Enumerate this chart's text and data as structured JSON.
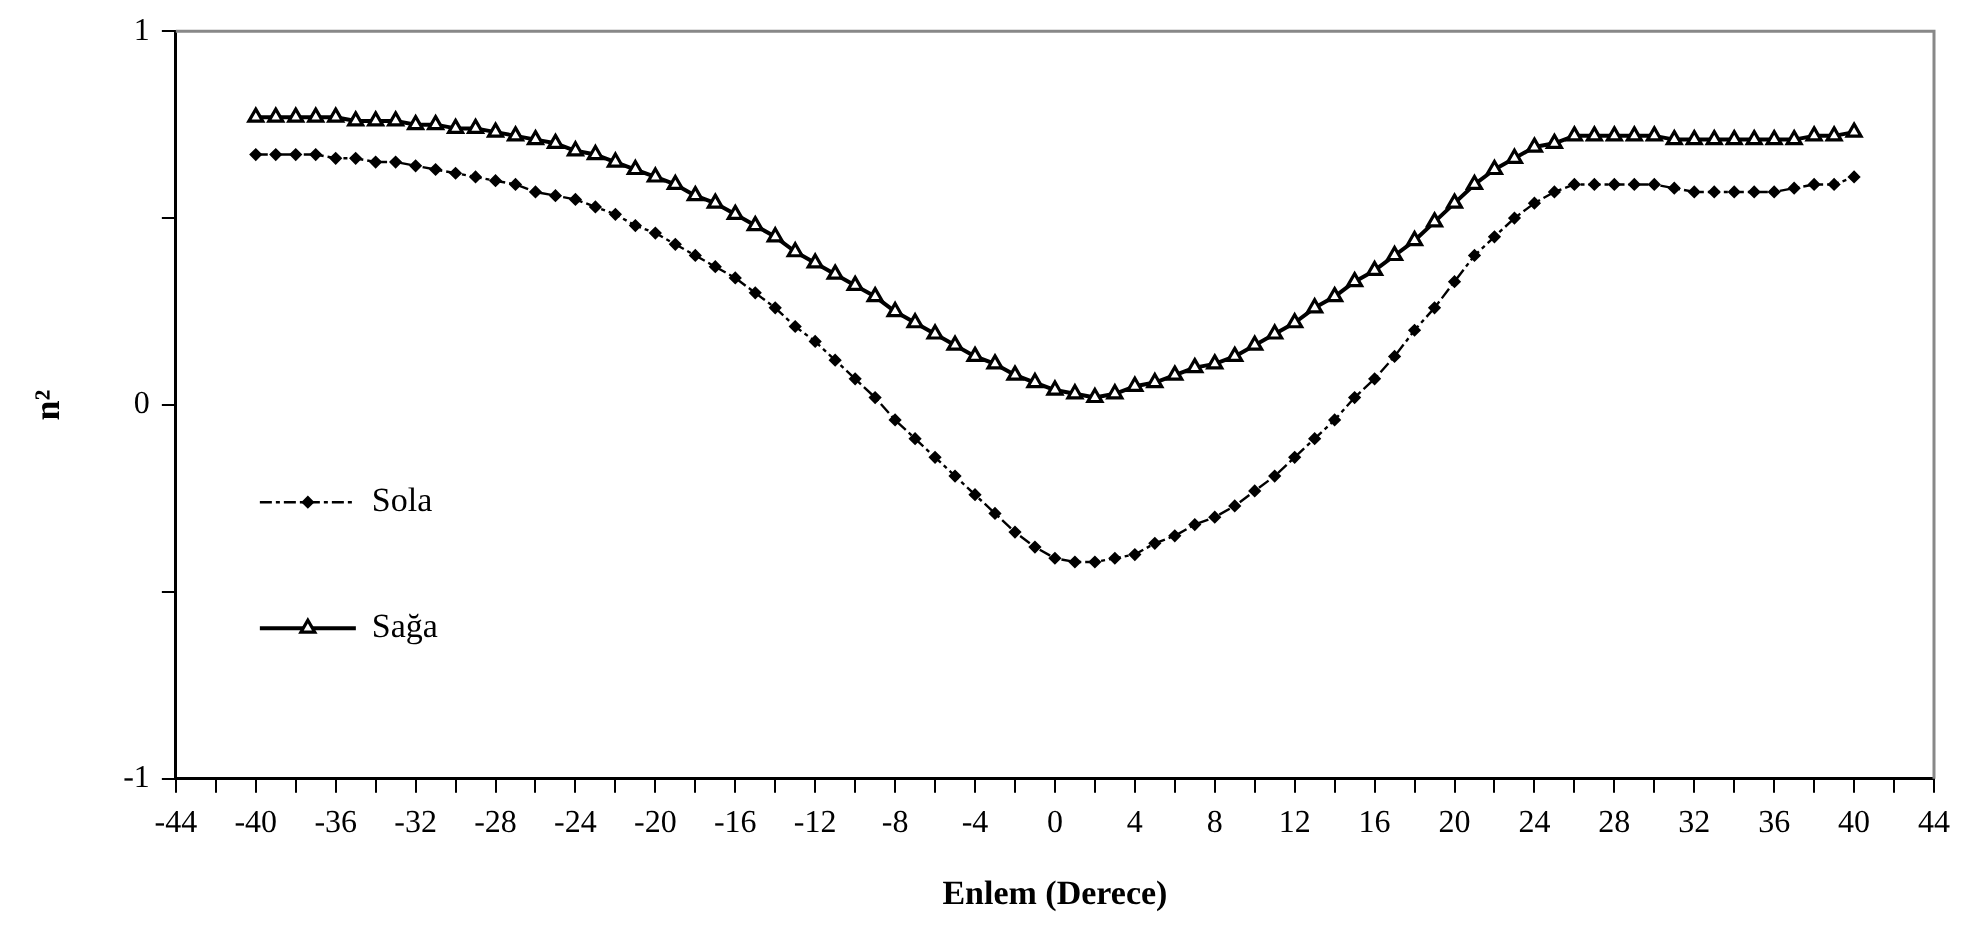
{
  "chart_data": {
    "type": "line",
    "xlabel": "Enlem (Derece)",
    "ylabel": "n²",
    "x": [
      -40,
      -39,
      -38,
      -37,
      -36,
      -35,
      -34,
      -33,
      -32,
      -31,
      -30,
      -29,
      -28,
      -27,
      -26,
      -25,
      -24,
      -23,
      -22,
      -21,
      -20,
      -19,
      -18,
      -17,
      -16,
      -15,
      -14,
      -13,
      -12,
      -11,
      -10,
      -9,
      -8,
      -7,
      -6,
      -5,
      -4,
      -3,
      -2,
      -1,
      0,
      1,
      2,
      3,
      4,
      5,
      6,
      7,
      8,
      9,
      10,
      11,
      12,
      13,
      14,
      15,
      16,
      17,
      18,
      19,
      20,
      21,
      22,
      23,
      24,
      25,
      26,
      27,
      28,
      29,
      30,
      31,
      32,
      33,
      34,
      35,
      36,
      37,
      38,
      39,
      40
    ],
    "series": [
      {
        "name": "Sola",
        "color": "#000000",
        "marker": "diamond",
        "line_style": "dashed",
        "values": [
          0.67,
          0.67,
          0.67,
          0.67,
          0.66,
          0.66,
          0.65,
          0.65,
          0.64,
          0.63,
          0.62,
          0.61,
          0.6,
          0.59,
          0.57,
          0.56,
          0.55,
          0.53,
          0.51,
          0.48,
          0.46,
          0.43,
          0.4,
          0.37,
          0.34,
          0.3,
          0.26,
          0.21,
          0.17,
          0.12,
          0.07,
          0.02,
          -0.04,
          -0.09,
          -0.14,
          -0.19,
          -0.24,
          -0.29,
          -0.34,
          -0.38,
          -0.41,
          -0.42,
          -0.42,
          -0.41,
          -0.4,
          -0.37,
          -0.35,
          -0.32,
          -0.3,
          -0.27,
          -0.23,
          -0.19,
          -0.14,
          -0.09,
          -0.04,
          0.02,
          0.07,
          0.13,
          0.2,
          0.26,
          0.33,
          0.4,
          0.45,
          0.5,
          0.54,
          0.57,
          0.59,
          0.59,
          0.59,
          0.59,
          0.59,
          0.58,
          0.57,
          0.57,
          0.57,
          0.57,
          0.57,
          0.58,
          0.59,
          0.59,
          0.61
        ]
      },
      {
        "name": "Sağa",
        "color": "#000000",
        "marker": "triangle",
        "line_style": "solid",
        "values": [
          0.77,
          0.77,
          0.77,
          0.77,
          0.77,
          0.76,
          0.76,
          0.76,
          0.75,
          0.75,
          0.74,
          0.74,
          0.73,
          0.72,
          0.71,
          0.7,
          0.68,
          0.67,
          0.65,
          0.63,
          0.61,
          0.59,
          0.56,
          0.54,
          0.51,
          0.48,
          0.45,
          0.41,
          0.38,
          0.35,
          0.32,
          0.29,
          0.25,
          0.22,
          0.19,
          0.16,
          0.13,
          0.11,
          0.08,
          0.06,
          0.04,
          0.03,
          0.02,
          0.03,
          0.05,
          0.06,
          0.08,
          0.1,
          0.11,
          0.13,
          0.16,
          0.19,
          0.22,
          0.26,
          0.29,
          0.33,
          0.36,
          0.4,
          0.44,
          0.49,
          0.54,
          0.59,
          0.63,
          0.66,
          0.69,
          0.7,
          0.72,
          0.72,
          0.72,
          0.72,
          0.72,
          0.71,
          0.71,
          0.71,
          0.71,
          0.71,
          0.71,
          0.71,
          0.72,
          0.72,
          0.73
        ]
      }
    ],
    "xlim": [
      -44,
      44
    ],
    "xticks": [
      -44,
      {
        "value": -42,
        "label": null
      },
      -40,
      {
        "value": -38,
        "label": null
      },
      -36,
      {
        "value": -34,
        "label": null
      },
      -32,
      {
        "value": -30,
        "label": null
      },
      -28,
      {
        "value": -26,
        "label": null
      },
      -24,
      {
        "value": -22,
        "label": null
      },
      -20,
      {
        "value": -18,
        "label": null
      },
      -16,
      {
        "value": -14,
        "label": null
      },
      -12,
      {
        "value": -10,
        "label": null
      },
      -8,
      {
        "value": -6,
        "label": null
      },
      -4,
      {
        "value": -2,
        "label": null
      },
      0,
      {
        "value": 2,
        "label": null
      },
      4,
      {
        "value": 6,
        "label": null
      },
      8,
      {
        "value": 10,
        "label": null
      },
      12,
      {
        "value": 14,
        "label": null
      },
      16,
      {
        "value": 18,
        "label": null
      },
      20,
      {
        "value": 22,
        "label": null
      },
      24,
      {
        "value": 26,
        "label": null
      },
      28,
      {
        "value": 30,
        "label": null
      },
      32,
      {
        "value": 34,
        "label": null
      },
      36,
      {
        "value": 38,
        "label": null
      },
      40,
      {
        "value": 42,
        "label": null
      },
      44
    ],
    "ylim": [
      -1,
      1
    ],
    "yticks": [
      -1,
      {
        "value": -0.5,
        "label": null
      },
      0,
      {
        "value": 0.5,
        "label": null
      },
      1
    ],
    "legend": "left",
    "grid": false
  }
}
